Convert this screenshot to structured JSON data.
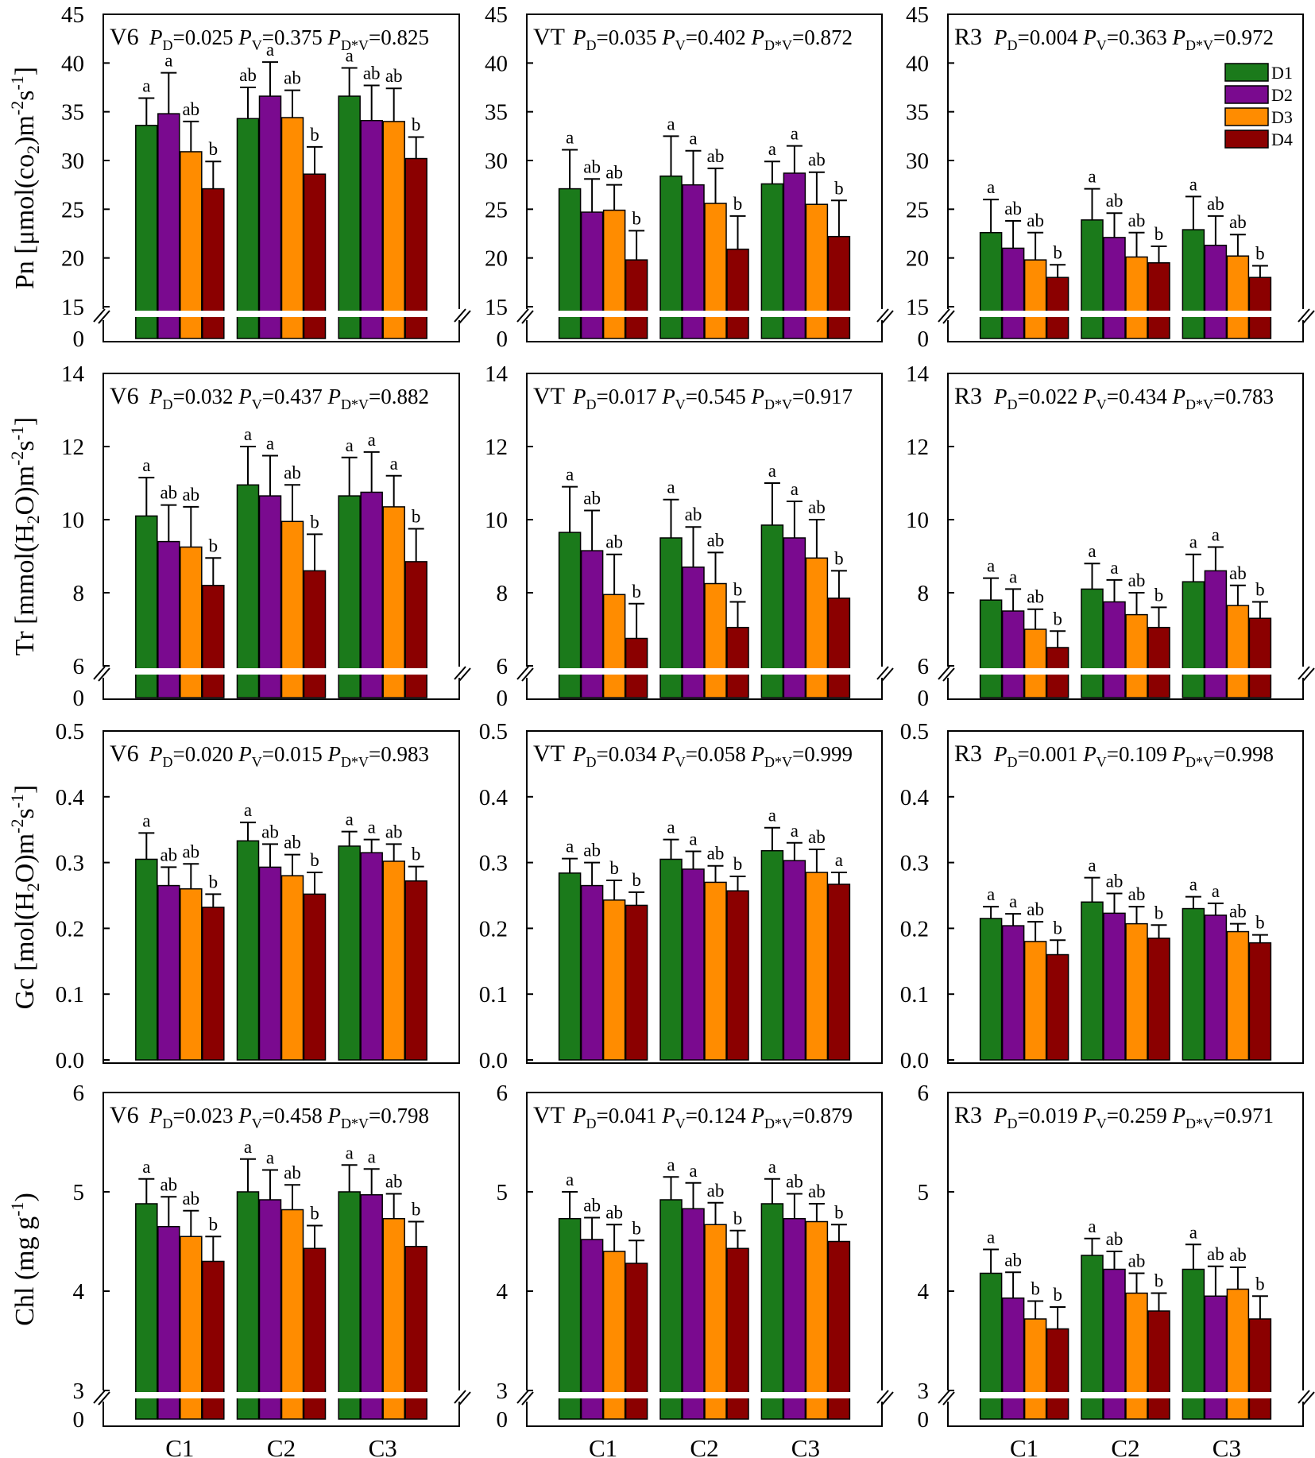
{
  "chart_data": {
    "type": "bar",
    "categories": [
      "C1",
      "C2",
      "C3"
    ],
    "legend": [
      "D1",
      "D2",
      "D3",
      "D4"
    ],
    "colors": {
      "D1": "#1b7a1b",
      "D2": "#7a0a8f",
      "D3": "#ff8c00",
      "D4": "#8b0000"
    },
    "stages": [
      "V6",
      "VT",
      "R3"
    ],
    "rows": [
      {
        "key": "Pn",
        "ylabel_main": "Pn [μmol(co",
        "ylabel_sub1": "2",
        "ylabel_mid": ")m",
        "ylabel_sup1": "-2",
        "ylabel_s": "s",
        "ylabel_sup2": "-1",
        "ylabel_end": "]",
        "ylim": [
          15,
          45
        ],
        "yticks": [
          "15",
          "20",
          "25",
          "30",
          "35",
          "40",
          "45"
        ],
        "ytick_values": [
          15,
          20,
          25,
          30,
          35,
          40,
          45
        ],
        "axis_break": true,
        "zero_label": "0",
        "panels": [
          {
            "stage": "V6",
            "pd": "=0.025",
            "pv": "=0.375",
            "pdv": "=0.825",
            "series": [
              [
                33.6,
                34.8,
                30.9,
                27.1
              ],
              [
                34.3,
                36.6,
                34.4,
                28.6
              ],
              [
                36.6,
                34.1,
                34.0,
                30.2
              ]
            ],
            "errors": [
              [
                2.8,
                4.2,
                3.1,
                2.8
              ],
              [
                3.2,
                3.5,
                2.8,
                2.8
              ],
              [
                2.9,
                3.6,
                3.4,
                2.2
              ]
            ],
            "letters": [
              [
                "a",
                "a",
                "ab",
                "b"
              ],
              [
                "ab",
                "a",
                "ab",
                "b"
              ],
              [
                "a",
                "ab",
                "ab",
                "b"
              ]
            ]
          },
          {
            "stage": "VT",
            "pd": "=0.035",
            "pv": "=0.402",
            "pdv": "=0.872",
            "series": [
              [
                27.1,
                24.7,
                24.9,
                19.8
              ],
              [
                28.4,
                27.5,
                25.6,
                20.9
              ],
              [
                27.6,
                28.7,
                25.5,
                22.2
              ]
            ],
            "errors": [
              [
                4.0,
                3.4,
                2.6,
                3.0
              ],
              [
                4.1,
                3.5,
                3.6,
                3.4
              ],
              [
                2.3,
                2.8,
                3.3,
                3.7
              ]
            ],
            "letters": [
              [
                "a",
                "ab",
                "ab",
                "b"
              ],
              [
                "a",
                "a",
                "ab",
                "b"
              ],
              [
                "a",
                "a",
                "ab",
                "b"
              ]
            ]
          },
          {
            "stage": "R3",
            "pd": "=0.004",
            "pv": "=0.363",
            "pdv": "=0.972",
            "series": [
              [
                22.6,
                21.0,
                19.8,
                18.0
              ],
              [
                23.9,
                22.1,
                20.1,
                19.5
              ],
              [
                22.9,
                21.3,
                20.2,
                18.0
              ]
            ],
            "errors": [
              [
                3.4,
                2.8,
                2.8,
                1.3
              ],
              [
                3.2,
                2.5,
                2.5,
                1.7
              ],
              [
                3.4,
                3.0,
                2.2,
                1.2
              ]
            ],
            "letters": [
              [
                "a",
                "ab",
                "ab",
                "b"
              ],
              [
                "a",
                "ab",
                "ab",
                "b"
              ],
              [
                "a",
                "ab",
                "ab",
                "b"
              ]
            ]
          }
        ]
      },
      {
        "key": "Tr",
        "ylabel_main": "Tr [mmol(H",
        "ylabel_sub1": "2",
        "ylabel_mid": "O)m",
        "ylabel_sup1": "-2",
        "ylabel_s": "s",
        "ylabel_sup2": "-1",
        "ylabel_end": "]",
        "ylim": [
          6,
          14
        ],
        "yticks": [
          "6",
          "8",
          "10",
          "12",
          "14"
        ],
        "ytick_values": [
          6,
          8,
          10,
          12,
          14
        ],
        "axis_break": true,
        "zero_label": "0",
        "panels": [
          {
            "stage": "V6",
            "pd": "=0.032",
            "pv": "=0.437",
            "pdv": "=0.882",
            "series": [
              [
                10.1,
                9.4,
                9.25,
                8.2
              ],
              [
                10.95,
                10.65,
                9.95,
                8.6
              ],
              [
                10.65,
                10.75,
                10.35,
                8.85
              ]
            ],
            "errors": [
              [
                1.05,
                1.0,
                1.1,
                0.75
              ],
              [
                1.05,
                1.1,
                1.0,
                1.0
              ],
              [
                1.05,
                1.1,
                0.85,
                0.9
              ]
            ],
            "letters": [
              [
                "a",
                "ab",
                "ab",
                "b"
              ],
              [
                "a",
                "a",
                "ab",
                "b"
              ],
              [
                "a",
                "a",
                "a",
                "b"
              ]
            ]
          },
          {
            "stage": "VT",
            "pd": "=0.017",
            "pv": "=0.545",
            "pdv": "=0.917",
            "series": [
              [
                9.65,
                9.15,
                7.95,
                6.75
              ],
              [
                9.5,
                8.7,
                8.25,
                7.05
              ],
              [
                9.85,
                9.5,
                8.95,
                7.85
              ]
            ],
            "errors": [
              [
                1.25,
                1.1,
                1.1,
                0.95
              ],
              [
                1.05,
                1.1,
                0.85,
                0.7
              ],
              [
                1.15,
                1.0,
                1.05,
                0.75
              ]
            ],
            "letters": [
              [
                "a",
                "ab",
                "ab",
                "b"
              ],
              [
                "a",
                "ab",
                "ab",
                "b"
              ],
              [
                "a",
                "a",
                "ab",
                "b"
              ]
            ]
          },
          {
            "stage": "R3",
            "pd": "=0.022",
            "pv": "=0.434",
            "pdv": "=0.783",
            "series": [
              [
                7.8,
                7.5,
                7.0,
                6.5
              ],
              [
                8.1,
                7.75,
                7.4,
                7.05
              ],
              [
                8.3,
                8.6,
                7.65,
                7.3
              ]
            ],
            "errors": [
              [
                0.6,
                0.6,
                0.55,
                0.45
              ],
              [
                0.7,
                0.6,
                0.6,
                0.55
              ],
              [
                0.75,
                0.65,
                0.55,
                0.45
              ]
            ],
            "letters": [
              [
                "a",
                "a",
                "ab",
                "b"
              ],
              [
                "a",
                "a",
                "ab",
                "b"
              ],
              [
                "a",
                "a",
                "ab",
                "b"
              ]
            ]
          }
        ]
      },
      {
        "key": "Gc",
        "ylabel_main": "Gc [mol(H",
        "ylabel_sub1": "2",
        "ylabel_mid": "O)m",
        "ylabel_sup1": "-2",
        "ylabel_s": "s",
        "ylabel_sup2": "-1",
        "ylabel_end": "]",
        "ylim": [
          0.0,
          0.5
        ],
        "yticks": [
          "0.0",
          "0.1",
          "0.2",
          "0.3",
          "0.4",
          "0.5"
        ],
        "ytick_values": [
          0.0,
          0.1,
          0.2,
          0.3,
          0.4,
          0.5
        ],
        "axis_break": false,
        "zero_label": "",
        "panels": [
          {
            "stage": "V6",
            "pd": "=0.020",
            "pv": "=0.015",
            "pdv": "=0.983",
            "series": [
              [
                0.305,
                0.265,
                0.26,
                0.232
              ],
              [
                0.333,
                0.293,
                0.28,
                0.252
              ],
              [
                0.325,
                0.315,
                0.302,
                0.272
              ]
            ],
            "errors": [
              [
                0.04,
                0.028,
                0.038,
                0.02
              ],
              [
                0.028,
                0.035,
                0.032,
                0.033
              ],
              [
                0.022,
                0.02,
                0.026,
                0.022
              ]
            ],
            "letters": [
              [
                "a",
                "ab",
                "ab",
                "b"
              ],
              [
                "a",
                "ab",
                "ab",
                "b"
              ],
              [
                "a",
                "a",
                "ab",
                "b"
              ]
            ]
          },
          {
            "stage": "VT",
            "pd": "=0.034",
            "pv": "=0.058",
            "pdv": "=0.999",
            "series": [
              [
                0.284,
                0.265,
                0.243,
                0.235
              ],
              [
                0.305,
                0.29,
                0.27,
                0.257
              ],
              [
                0.318,
                0.303,
                0.285,
                0.267
              ]
            ],
            "errors": [
              [
                0.022,
                0.035,
                0.03,
                0.02
              ],
              [
                0.03,
                0.027,
                0.025,
                0.022
              ],
              [
                0.035,
                0.027,
                0.035,
                0.018
              ]
            ],
            "letters": [
              [
                "a",
                "ab",
                "b",
                "b"
              ],
              [
                "a",
                "a",
                "ab",
                "b"
              ],
              [
                "a",
                "a",
                "ab",
                "a"
              ]
            ]
          },
          {
            "stage": "R3",
            "pd": "=0.001",
            "pv": "=0.109",
            "pdv": "=0.998",
            "series": [
              [
                0.215,
                0.204,
                0.18,
                0.16
              ],
              [
                0.24,
                0.223,
                0.207,
                0.185
              ],
              [
                0.23,
                0.22,
                0.195,
                0.178
              ]
            ],
            "errors": [
              [
                0.018,
                0.018,
                0.03,
                0.022
              ],
              [
                0.037,
                0.03,
                0.026,
                0.02
              ],
              [
                0.018,
                0.018,
                0.012,
                0.012
              ]
            ],
            "letters": [
              [
                "a",
                "a",
                "ab",
                "b"
              ],
              [
                "a",
                "ab",
                "ab",
                "b"
              ],
              [
                "a",
                "a",
                "ab",
                "b"
              ]
            ]
          }
        ]
      },
      {
        "key": "Chl",
        "ylabel_main": "Chl (mg g",
        "ylabel_sub1": "",
        "ylabel_mid": "",
        "ylabel_sup1": "-1",
        "ylabel_s": "",
        "ylabel_sup2": "",
        "ylabel_end": ")",
        "ylim": [
          3,
          6
        ],
        "yticks": [
          "3",
          "4",
          "5",
          "6"
        ],
        "ytick_values": [
          3,
          4,
          5,
          6
        ],
        "axis_break": true,
        "zero_label": "0",
        "panels": [
          {
            "stage": "V6",
            "pd": "=0.023",
            "pv": "=0.458",
            "pdv": "=0.798",
            "series": [
              [
                4.88,
                4.65,
                4.55,
                4.3
              ],
              [
                5.0,
                4.92,
                4.82,
                4.43
              ],
              [
                5.0,
                4.97,
                4.73,
                4.45
              ]
            ],
            "errors": [
              [
                0.25,
                0.3,
                0.26,
                0.25
              ],
              [
                0.33,
                0.3,
                0.25,
                0.23
              ],
              [
                0.27,
                0.26,
                0.25,
                0.25
              ]
            ],
            "letters": [
              [
                "a",
                "ab",
                "ab",
                "b"
              ],
              [
                "a",
                "a",
                "ab",
                "b"
              ],
              [
                "a",
                "a",
                "ab",
                "b"
              ]
            ]
          },
          {
            "stage": "VT",
            "pd": "=0.041",
            "pv": "=0.124",
            "pdv": "=0.879",
            "series": [
              [
                4.73,
                4.52,
                4.4,
                4.28
              ],
              [
                4.92,
                4.83,
                4.67,
                4.43
              ],
              [
                4.88,
                4.73,
                4.7,
                4.5
              ]
            ],
            "errors": [
              [
                0.27,
                0.22,
                0.27,
                0.23
              ],
              [
                0.23,
                0.26,
                0.22,
                0.18
              ],
              [
                0.25,
                0.25,
                0.18,
                0.17
              ]
            ],
            "letters": [
              [
                "a",
                "ab",
                "ab",
                "b"
              ],
              [
                "a",
                "a",
                "ab",
                "b"
              ],
              [
                "a",
                "ab",
                "ab",
                "b"
              ]
            ]
          },
          {
            "stage": "R3",
            "pd": "=0.019",
            "pv": "=0.259",
            "pdv": "=0.971",
            "series": [
              [
                4.18,
                3.93,
                3.72,
                3.62
              ],
              [
                4.36,
                4.22,
                3.98,
                3.8
              ],
              [
                4.22,
                3.95,
                4.02,
                3.72
              ]
            ],
            "errors": [
              [
                0.24,
                0.26,
                0.18,
                0.22
              ],
              [
                0.17,
                0.18,
                0.2,
                0.18
              ],
              [
                0.25,
                0.3,
                0.22,
                0.23
              ]
            ],
            "letters": [
              [
                "a",
                "ab",
                "b",
                "b"
              ],
              [
                "a",
                "ab",
                "ab",
                "b"
              ],
              [
                "a",
                "ab",
                "ab",
                "b"
              ]
            ]
          }
        ]
      }
    ]
  },
  "stat_labels": {
    "p": "P",
    "d": "D",
    "v": "V",
    "dv": "D*V"
  }
}
